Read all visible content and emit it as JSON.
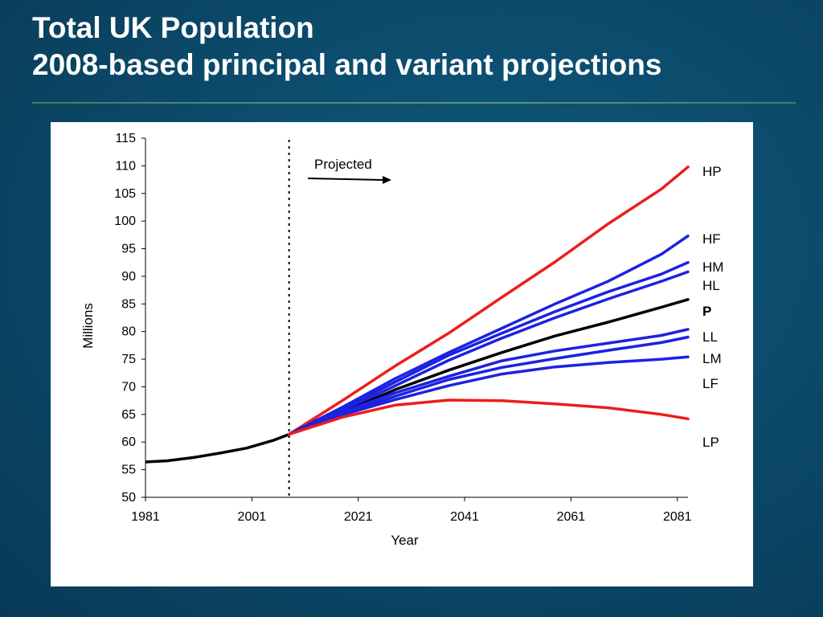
{
  "slide": {
    "title_line1": "Total UK Population",
    "title_line2": "2008-based principal and variant projections"
  },
  "colors": {
    "background": "#0b4868",
    "principal": "#000000",
    "high_low_population": "#ee1c1c",
    "variants": "#1c22e0"
  },
  "chart_data": {
    "type": "line",
    "xlabel": "Year",
    "ylabel": "Millions",
    "xlim": [
      1981,
      2083
    ],
    "ylim": [
      50,
      115
    ],
    "xticks": [
      1981,
      2001,
      2021,
      2041,
      2061,
      2081
    ],
    "yticks": [
      50,
      55,
      60,
      65,
      70,
      75,
      80,
      85,
      90,
      95,
      100,
      105,
      110,
      115
    ],
    "grid": false,
    "projection_start": 2008,
    "annotation": "Projected",
    "historical": {
      "name": "",
      "x": [
        1981,
        1985,
        1990,
        1995,
        2000,
        2005,
        2008
      ],
      "y": [
        56.4,
        56.6,
        57.2,
        58.0,
        58.9,
        60.3,
        61.4
      ]
    },
    "series": [
      {
        "label": "HP",
        "color": "#ee1c1c",
        "bold": false,
        "x": [
          2008,
          2018,
          2028,
          2038,
          2048,
          2058,
          2068,
          2078,
          2083
        ],
        "y": [
          61.4,
          67.5,
          73.8,
          79.7,
          86.2,
          92.6,
          99.5,
          105.8,
          109.8
        ]
      },
      {
        "label": "HF",
        "color": "#1c22e0",
        "bold": false,
        "x": [
          2008,
          2018,
          2028,
          2038,
          2048,
          2058,
          2068,
          2078,
          2083
        ],
        "y": [
          61.4,
          66.3,
          71.5,
          76.2,
          80.6,
          85.0,
          89.1,
          94.0,
          97.3
        ]
      },
      {
        "label": "HM",
        "color": "#1c22e0",
        "bold": false,
        "x": [
          2008,
          2018,
          2028,
          2038,
          2048,
          2058,
          2068,
          2078,
          2083
        ],
        "y": [
          61.4,
          65.9,
          70.9,
          75.7,
          79.7,
          83.6,
          87.2,
          90.4,
          92.5
        ]
      },
      {
        "label": "HL",
        "color": "#1c22e0",
        "bold": false,
        "x": [
          2008,
          2018,
          2028,
          2038,
          2048,
          2058,
          2068,
          2078,
          2083
        ],
        "y": [
          61.4,
          65.6,
          70.2,
          74.8,
          78.8,
          82.5,
          85.9,
          89.1,
          90.8
        ]
      },
      {
        "label": "P",
        "color": "#000000",
        "bold": true,
        "x": [
          2008,
          2018,
          2028,
          2038,
          2048,
          2058,
          2068,
          2078,
          2083
        ],
        "y": [
          61.4,
          65.3,
          69.5,
          73.0,
          76.2,
          79.2,
          81.7,
          84.4,
          85.8
        ]
      },
      {
        "label": "LL",
        "color": "#1c22e0",
        "bold": false,
        "x": [
          2008,
          2018,
          2028,
          2038,
          2048,
          2058,
          2068,
          2078,
          2083
        ],
        "y": [
          61.4,
          65.4,
          68.9,
          71.9,
          74.7,
          76.5,
          77.9,
          79.3,
          80.4
        ]
      },
      {
        "label": "LM",
        "color": "#1c22e0",
        "bold": false,
        "x": [
          2008,
          2018,
          2028,
          2038,
          2048,
          2058,
          2068,
          2078,
          2083
        ],
        "y": [
          61.4,
          65.1,
          68.3,
          71.3,
          73.5,
          75.1,
          76.6,
          78.0,
          79.0
        ]
      },
      {
        "label": "LF",
        "color": "#1c22e0",
        "bold": false,
        "x": [
          2008,
          2018,
          2028,
          2038,
          2048,
          2058,
          2068,
          2078,
          2083
        ],
        "y": [
          61.4,
          64.9,
          67.7,
          70.2,
          72.3,
          73.6,
          74.4,
          75.0,
          75.4
        ]
      },
      {
        "label": "LP",
        "color": "#ee1c1c",
        "bold": false,
        "x": [
          2008,
          2018,
          2028,
          2038,
          2048,
          2058,
          2068,
          2078,
          2083
        ],
        "y": [
          61.4,
          64.5,
          66.7,
          67.6,
          67.5,
          66.9,
          66.2,
          65.0,
          64.2
        ]
      }
    ]
  }
}
